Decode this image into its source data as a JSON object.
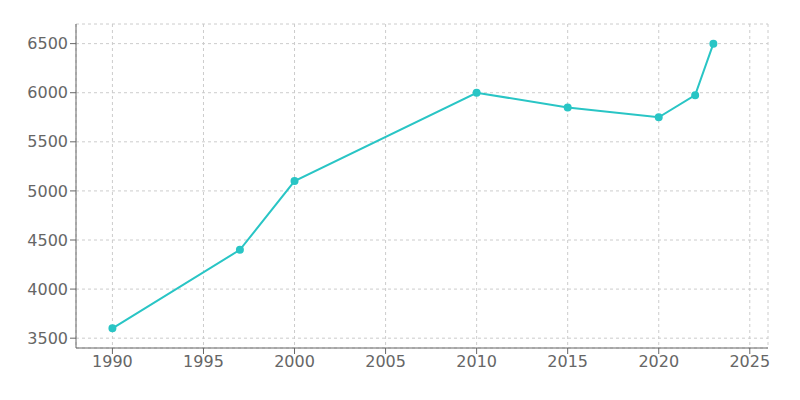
{
  "chart_data": {
    "type": "line",
    "x": [
      1990,
      1997,
      2000,
      2010,
      2015,
      2020,
      2022,
      2023
    ],
    "values": [
      3600,
      4400,
      5100,
      6000,
      5850,
      5750,
      5975,
      6500
    ],
    "color": "#29c5c5",
    "marker": "circle",
    "xlim": [
      1988,
      2026
    ],
    "ylim": [
      3400,
      6700
    ],
    "xticks": [
      1990,
      1995,
      2000,
      2005,
      2010,
      2015,
      2020,
      2025
    ],
    "yticks": [
      3500,
      4000,
      4500,
      5000,
      5500,
      6000,
      6500
    ],
    "grid": true
  }
}
